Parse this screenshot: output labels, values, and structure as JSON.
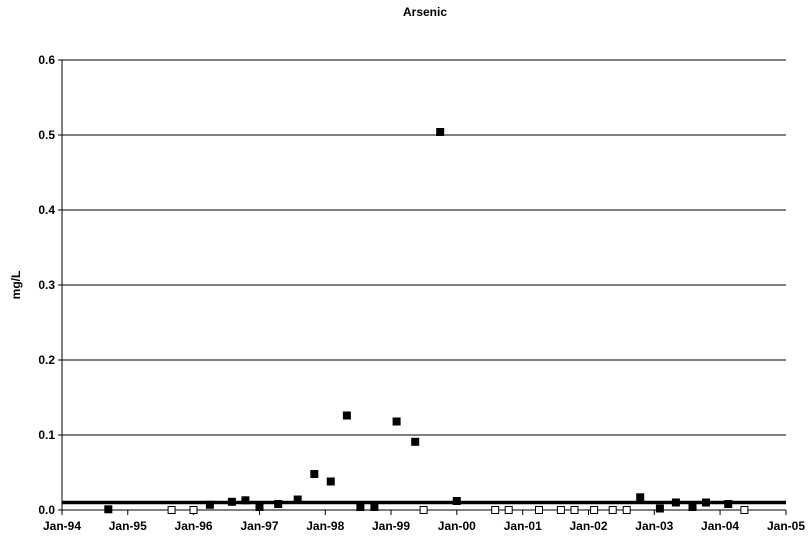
{
  "chart_data": {
    "type": "scatter",
    "title": "Arsenic",
    "xlabel": "",
    "ylabel": "mg/L",
    "x_axis_type": "date",
    "xlim": [
      "1994-01-01",
      "2005-01-01"
    ],
    "x_ticks": [
      "Jan-94",
      "Jan-95",
      "Jan-96",
      "Jan-97",
      "Jan-98",
      "Jan-99",
      "Jan-00",
      "Jan-01",
      "Jan-02",
      "Jan-03",
      "Jan-04",
      "Jan-05"
    ],
    "x_tick_dates": [
      "1994-01-01",
      "1995-01-01",
      "1996-01-01",
      "1997-01-01",
      "1998-01-01",
      "1999-01-01",
      "2000-01-01",
      "2001-01-01",
      "2002-01-01",
      "2003-01-01",
      "2004-01-01",
      "2005-01-01"
    ],
    "ylim": [
      0,
      0.6
    ],
    "y_ticks": [
      0,
      0.1,
      0.2,
      0.3,
      0.4,
      0.5,
      0.6
    ],
    "y_tick_labels": [
      "0.0",
      "0.1",
      "0.2",
      "0.3",
      "0.4",
      "0.5",
      "0.6"
    ],
    "grid": "horizontal",
    "legend": "none",
    "reference_line": {
      "y": 0.01,
      "color": "#000000"
    },
    "series": [
      {
        "marker": "filled-square",
        "color": "#000000",
        "points": [
          {
            "x": "1994-09-15",
            "y": 0.001
          },
          {
            "x": "1996-04-01",
            "y": 0.007
          },
          {
            "x": "1996-08-01",
            "y": 0.011
          },
          {
            "x": "1996-10-15",
            "y": 0.013
          },
          {
            "x": "1997-01-01",
            "y": 0.004
          },
          {
            "x": "1997-04-15",
            "y": 0.008
          },
          {
            "x": "1997-08-01",
            "y": 0.014
          },
          {
            "x": "1997-11-01",
            "y": 0.048
          },
          {
            "x": "1998-02-01",
            "y": 0.038
          },
          {
            "x": "1998-05-01",
            "y": 0.126
          },
          {
            "x": "1998-07-15",
            "y": 0.004
          },
          {
            "x": "1998-10-01",
            "y": 0.004
          },
          {
            "x": "1999-02-01",
            "y": 0.118
          },
          {
            "x": "1999-05-15",
            "y": 0.091
          },
          {
            "x": "1999-10-01",
            "y": 0.504
          },
          {
            "x": "2000-01-01",
            "y": 0.012
          },
          {
            "x": "2002-10-15",
            "y": 0.017
          },
          {
            "x": "2003-02-01",
            "y": 0.002
          },
          {
            "x": "2003-05-01",
            "y": 0.01
          },
          {
            "x": "2003-08-01",
            "y": 0.004
          },
          {
            "x": "2003-10-15",
            "y": 0.01
          },
          {
            "x": "2004-02-15",
            "y": 0.008
          }
        ]
      },
      {
        "marker": "open-square",
        "color": "#000000",
        "points": [
          {
            "x": "1995-09-01",
            "y": 0.0
          },
          {
            "x": "1996-01-01",
            "y": 0.0
          },
          {
            "x": "1999-07-01",
            "y": 0.0
          },
          {
            "x": "2000-08-01",
            "y": 0.0
          },
          {
            "x": "2000-10-15",
            "y": 0.0
          },
          {
            "x": "2001-04-01",
            "y": 0.0
          },
          {
            "x": "2001-08-01",
            "y": 0.0
          },
          {
            "x": "2001-10-15",
            "y": 0.0
          },
          {
            "x": "2002-02-01",
            "y": 0.0
          },
          {
            "x": "2002-05-15",
            "y": 0.0
          },
          {
            "x": "2002-08-01",
            "y": 0.0
          },
          {
            "x": "2004-05-15",
            "y": 0.0
          }
        ]
      }
    ]
  }
}
